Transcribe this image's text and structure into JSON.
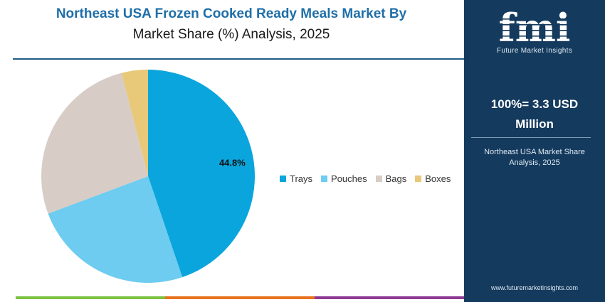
{
  "header": {
    "title_line1": "Northeast USA Frozen Cooked Ready Meals Market By",
    "title_line2": "Market Share (%) Analysis, 2025"
  },
  "chart_data": {
    "type": "pie",
    "title": "Northeast USA Frozen Cooked Ready Meals Market By Market Share (%) Analysis, 2025",
    "categories": [
      "Trays",
      "Pouches",
      "Bags",
      "Boxes"
    ],
    "values": [
      44.8,
      24.5,
      26.7,
      4.0
    ],
    "data_labels": [
      "44.8%",
      "",
      "",
      ""
    ],
    "colors": [
      "#0aa5dd",
      "#6dccf0",
      "#d8ccc6",
      "#e8c97a"
    ],
    "start_angle_deg": 0,
    "direction": "clockwise",
    "legend_position": "right"
  },
  "legend": {
    "items": [
      {
        "label": "Trays",
        "color": "#0aa5dd"
      },
      {
        "label": "Pouches",
        "color": "#6dccf0"
      },
      {
        "label": "Bags",
        "color": "#d8ccc6"
      },
      {
        "label": "Boxes",
        "color": "#e8c97a"
      }
    ]
  },
  "panel": {
    "logo_text": "fmi",
    "logo_tagline": "Future Market Insights",
    "total_line1": "100%= 3.3 USD",
    "total_line2": "Million",
    "note_line1": "Northeast USA Market Share",
    "note_line2": "Analysis, 2025",
    "website": "www.futuremarketinsights.com",
    "background": "#143a5e"
  },
  "bottom_bar_colors": [
    "#7dc243",
    "#e8731e",
    "#8e3a94"
  ]
}
